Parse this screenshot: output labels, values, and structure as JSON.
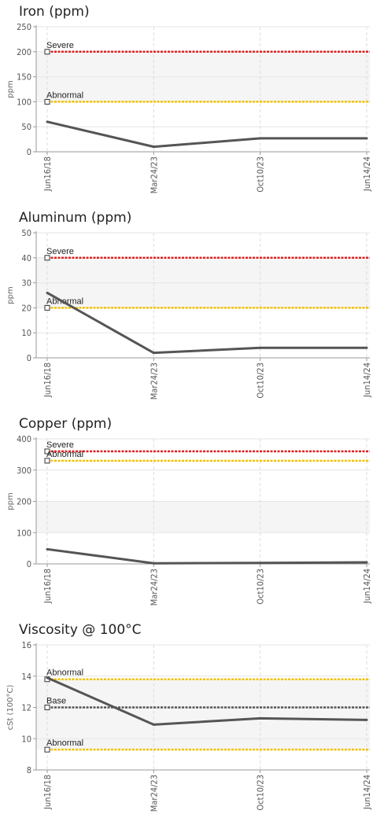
{
  "chart_data": [
    {
      "type": "line",
      "title": "Iron (ppm)",
      "ylabel": "ppm",
      "ylim": [
        0,
        250
      ],
      "yticks": [
        0,
        50,
        100,
        150,
        200,
        250
      ],
      "categories": [
        "Jun16/18",
        "Mar24/23",
        "Oct10/23",
        "Jun14/24"
      ],
      "series": [
        {
          "values": [
            60,
            10,
            27,
            27
          ],
          "color": "#555555"
        }
      ],
      "limits": [
        {
          "label": "Severe",
          "value": 200,
          "color": "#e02020"
        },
        {
          "label": "Abnormal",
          "value": 100,
          "color": "#f2c200"
        }
      ],
      "band": [
        100,
        200
      ],
      "grid": true
    },
    {
      "type": "line",
      "title": "Aluminum (ppm)",
      "ylabel": "ppm",
      "ylim": [
        0,
        50
      ],
      "yticks": [
        0,
        10,
        20,
        30,
        40,
        50
      ],
      "categories": [
        "Jun16/18",
        "Mar24/23",
        "Oct10/23",
        "Jun14/24"
      ],
      "series": [
        {
          "values": [
            26,
            2,
            4,
            4
          ],
          "color": "#555555"
        }
      ],
      "limits": [
        {
          "label": "Severe",
          "value": 40,
          "color": "#e02020"
        },
        {
          "label": "Abnormal",
          "value": 20,
          "color": "#f2c200"
        }
      ],
      "band": [
        20,
        40
      ],
      "grid": true
    },
    {
      "type": "line",
      "title": "Copper (ppm)",
      "ylabel": "ppm",
      "ylim": [
        0,
        400
      ],
      "yticks": [
        0,
        100,
        200,
        300,
        400
      ],
      "categories": [
        "Jun16/18",
        "Mar24/23",
        "Oct10/23",
        "Jun14/24"
      ],
      "series": [
        {
          "values": [
            47,
            2,
            3,
            5
          ],
          "color": "#555555"
        }
      ],
      "limits": [
        {
          "label": "Severe",
          "value": 360,
          "color": "#e02020"
        },
        {
          "label": "Abnormal",
          "value": 330,
          "color": "#f2c200"
        }
      ],
      "band": [
        100,
        200
      ],
      "grid": true
    },
    {
      "type": "line",
      "title": "Viscosity @ 100°C",
      "ylabel": "cSt (100°C)",
      "ylim": [
        8,
        16
      ],
      "yticks": [
        8,
        10,
        12,
        14,
        16
      ],
      "categories": [
        "Jun16/18",
        "Mar24/23",
        "Oct10/23",
        "Jun14/24"
      ],
      "series": [
        {
          "values": [
            13.9,
            10.9,
            11.3,
            11.2
          ],
          "color": "#555555"
        }
      ],
      "limits": [
        {
          "label": "Abnormal",
          "value": 13.8,
          "color": "#f2c200"
        },
        {
          "label": "Base",
          "value": 12,
          "color": "#555555"
        },
        {
          "label": "Abnormal",
          "value": 9.3,
          "color": "#f2c200"
        }
      ],
      "band": [
        9.3,
        13.8
      ],
      "grid": true
    }
  ]
}
